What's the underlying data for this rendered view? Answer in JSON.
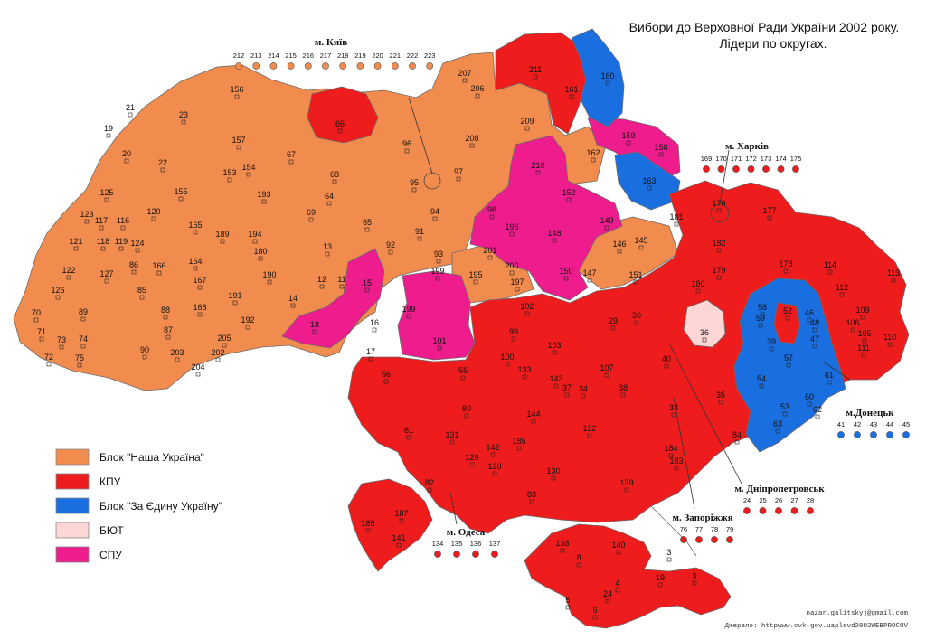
{
  "title": {
    "line1": "Вибори до Верховної Ради України 2002 року.",
    "line2": "Лідери по округах."
  },
  "colors": {
    "nasha": "#f28c4e",
    "kpu": "#ee1c1c",
    "edynu": "#1a6fe0",
    "byut": "#ffd6d6",
    "spu": "#ee1c8c"
  },
  "legend": [
    {
      "label": "Блок \"Наша Україна\"",
      "color": "#f28c4e"
    },
    {
      "label": "КПУ",
      "color": "#ee1c1c"
    },
    {
      "label": "Блок \"За Єдину Україну\"",
      "color": "#1a6fe0"
    },
    {
      "label": "БЮТ",
      "color": "#ffd6d6"
    },
    {
      "label": "СПУ",
      "color": "#ee1c8c"
    }
  ],
  "cities": {
    "kyiv": {
      "name": "м. Київ",
      "numbers": [
        "212",
        "213",
        "214",
        "215",
        "216",
        "217",
        "218",
        "219",
        "220",
        "221",
        "222",
        "223"
      ],
      "color": "#f28c4e"
    },
    "kharkiv": {
      "name": "м. Харків",
      "numbers": [
        "169",
        "170",
        "171",
        "172",
        "173",
        "174",
        "175"
      ],
      "color": "#ee1c1c"
    },
    "donetsk": {
      "name": "м.Донецьк",
      "numbers": [
        "41",
        "42",
        "43",
        "44",
        "45"
      ],
      "color": "#1a6fe0"
    },
    "dnipro": {
      "name": "м. Дніпропетровськ",
      "numbers": [
        "24",
        "25",
        "26",
        "27",
        "28"
      ],
      "color": "#ee1c1c"
    },
    "zaporizhzhia": {
      "name": "м. Запоріжжя",
      "numbers": [
        "76",
        "77",
        "78",
        "79"
      ],
      "color": "#ee1c1c"
    },
    "odesa": {
      "name": "м. Одеса",
      "numbers": [
        "134",
        "135",
        "136",
        "137"
      ],
      "color": "#ee1c1c"
    }
  },
  "district_labels": [
    "156",
    "21",
    "23",
    "19",
    "157",
    "20",
    "22",
    "153",
    "154",
    "125",
    "155",
    "193",
    "123",
    "117",
    "116",
    "120",
    "165",
    "189",
    "194",
    "121",
    "118",
    "119",
    "124",
    "180",
    "122",
    "127",
    "86",
    "166",
    "164",
    "190",
    "126",
    "85",
    "167",
    "191",
    "70",
    "89",
    "88",
    "168",
    "71",
    "73",
    "74",
    "87",
    "192",
    "72",
    "75",
    "90",
    "203",
    "205",
    "202",
    "204",
    "66",
    "67",
    "68",
    "64",
    "69",
    "65",
    "13",
    "14",
    "12",
    "11",
    "15",
    "18",
    "16",
    "17",
    "96",
    "95",
    "97",
    "94",
    "98",
    "91",
    "92",
    "93",
    "199",
    "199",
    "101",
    "195",
    "201",
    "200",
    "197",
    "207",
    "206",
    "211",
    "161",
    "160",
    "209",
    "208",
    "162",
    "159",
    "158",
    "210",
    "163",
    "152",
    "196",
    "148",
    "149",
    "146",
    "145",
    "151",
    "150",
    "147",
    "181",
    "176",
    "182",
    "177",
    "179",
    "178",
    "114",
    "113",
    "180",
    "36",
    "112",
    "102",
    "99",
    "103",
    "100",
    "29",
    "30",
    "59",
    "58",
    "52",
    "46",
    "48",
    "47",
    "109",
    "106",
    "105",
    "111",
    "110",
    "107",
    "40",
    "39",
    "57",
    "54",
    "61",
    "60",
    "53",
    "62",
    "63",
    "56",
    "55",
    "143",
    "133",
    "34",
    "38",
    "37",
    "35",
    "33",
    "84",
    "81",
    "80",
    "144",
    "132",
    "131",
    "185",
    "142",
    "129",
    "128",
    "130",
    "184",
    "183",
    "82",
    "83",
    "139",
    "186",
    "187",
    "141",
    "138",
    "140",
    "8",
    "3",
    "9",
    "4",
    "5",
    "6",
    "24",
    "19",
    "2",
    "1",
    "7"
  ],
  "credits": {
    "email": "nazar.galitskyj@gmail.com",
    "source": "Джерело: httpwww.cvk.gov.uaplsvd2002WEBPROC0V"
  }
}
